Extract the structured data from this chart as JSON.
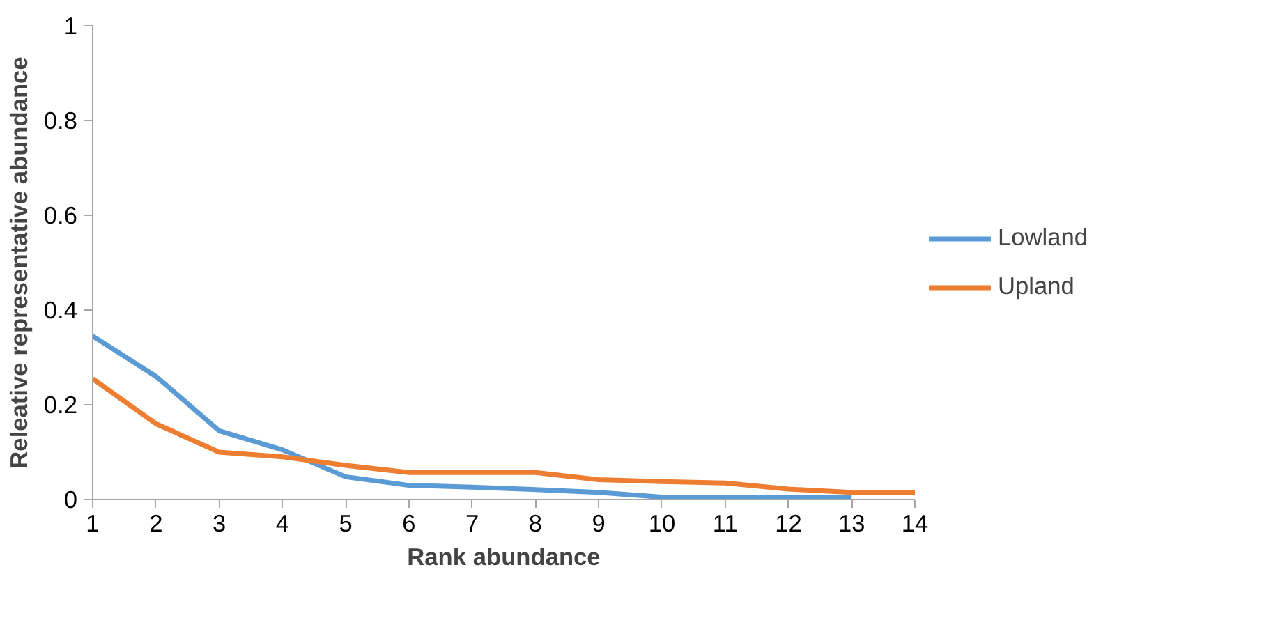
{
  "chart_data": {
    "type": "line",
    "xlabel": "Rank abundance",
    "ylabel": "Releative representative abundance",
    "x": [
      1,
      2,
      3,
      4,
      5,
      6,
      7,
      8,
      9,
      10,
      11,
      12,
      13,
      14
    ],
    "xlim": [
      1,
      14
    ],
    "xticks": [
      1,
      2,
      3,
      4,
      5,
      6,
      7,
      8,
      9,
      10,
      11,
      12,
      13,
      14
    ],
    "ylim": [
      0,
      1
    ],
    "yticks": [
      {
        "value": 0,
        "label": "0"
      },
      0.2,
      0.4,
      0.6,
      0.8,
      {
        "value": 1,
        "label": "1"
      }
    ],
    "grid": false,
    "legend": "right",
    "marker": "none",
    "line_style": "solid",
    "series": [
      {
        "name": "Lowland",
        "color": "#5b9bd5",
        "values": [
          0.345,
          0.26,
          0.145,
          0.105,
          0.048,
          0.03,
          0.026,
          0.021,
          0.015,
          0.005,
          0.005,
          0.005,
          0.005,
          null
        ]
      },
      {
        "name": "Upland",
        "color": "#ed7d31",
        "values": [
          0.255,
          0.16,
          0.1,
          0.09,
          0.072,
          0.057,
          0.057,
          0.057,
          0.042,
          0.038,
          0.035,
          0.022,
          0.015,
          0.015
        ]
      }
    ]
  }
}
